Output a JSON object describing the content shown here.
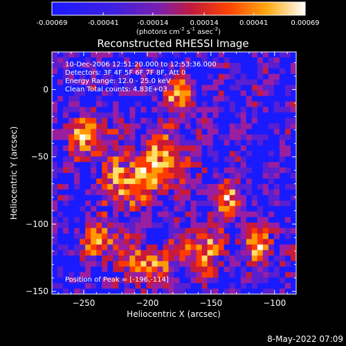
{
  "chart_data": {
    "type": "heatmap",
    "title": "Reconstructed RHESSI Image",
    "xlabel": "Heliocentric X (arcsec)",
    "ylabel": "Heliocentric Y (arcsec)",
    "xlim": [
      -275,
      -83
    ],
    "ylim": [
      -152,
      28
    ],
    "xticks": [
      -250,
      -200,
      -150,
      -100
    ],
    "yticks": [
      0,
      -50,
      -100,
      -150
    ],
    "colorbar": {
      "min": -0.00069,
      "max": 0.00069,
      "ticks": [
        "-0.00069",
        "-0.00041",
        "-0.00014",
        "0.00014",
        "0.00041",
        "0.00069"
      ],
      "unit_main": "(photons cm",
      "unit_exp1": "-2",
      "unit_mid1": " s",
      "unit_exp2": "-1",
      "unit_mid2": " asec",
      "unit_exp3": "-2",
      "unit_end": ")",
      "colors": [
        "#1a1aff",
        "#5a1fcf",
        "#9a1fa0",
        "#c81a3a",
        "#ff3a00",
        "#ff9900",
        "#ffe066",
        "#ffffff"
      ]
    },
    "peak_position": [
      -196,
      -114
    ],
    "annotations": {
      "time": "10-Dec-2006 12:51:20.000 to 12:53:36.000",
      "detectors": "Detectors: 3F 4F 5F 6F 7F 8F, Att 0",
      "energy": "Energy Range: 12.0 - 25.0 keV",
      "clean": "Clean     Total counts: 4.83E+03",
      "peak": "Position of Peak = [-196,-114]"
    }
  },
  "footer": {
    "timestamp": "8-May-2022 07:09"
  }
}
